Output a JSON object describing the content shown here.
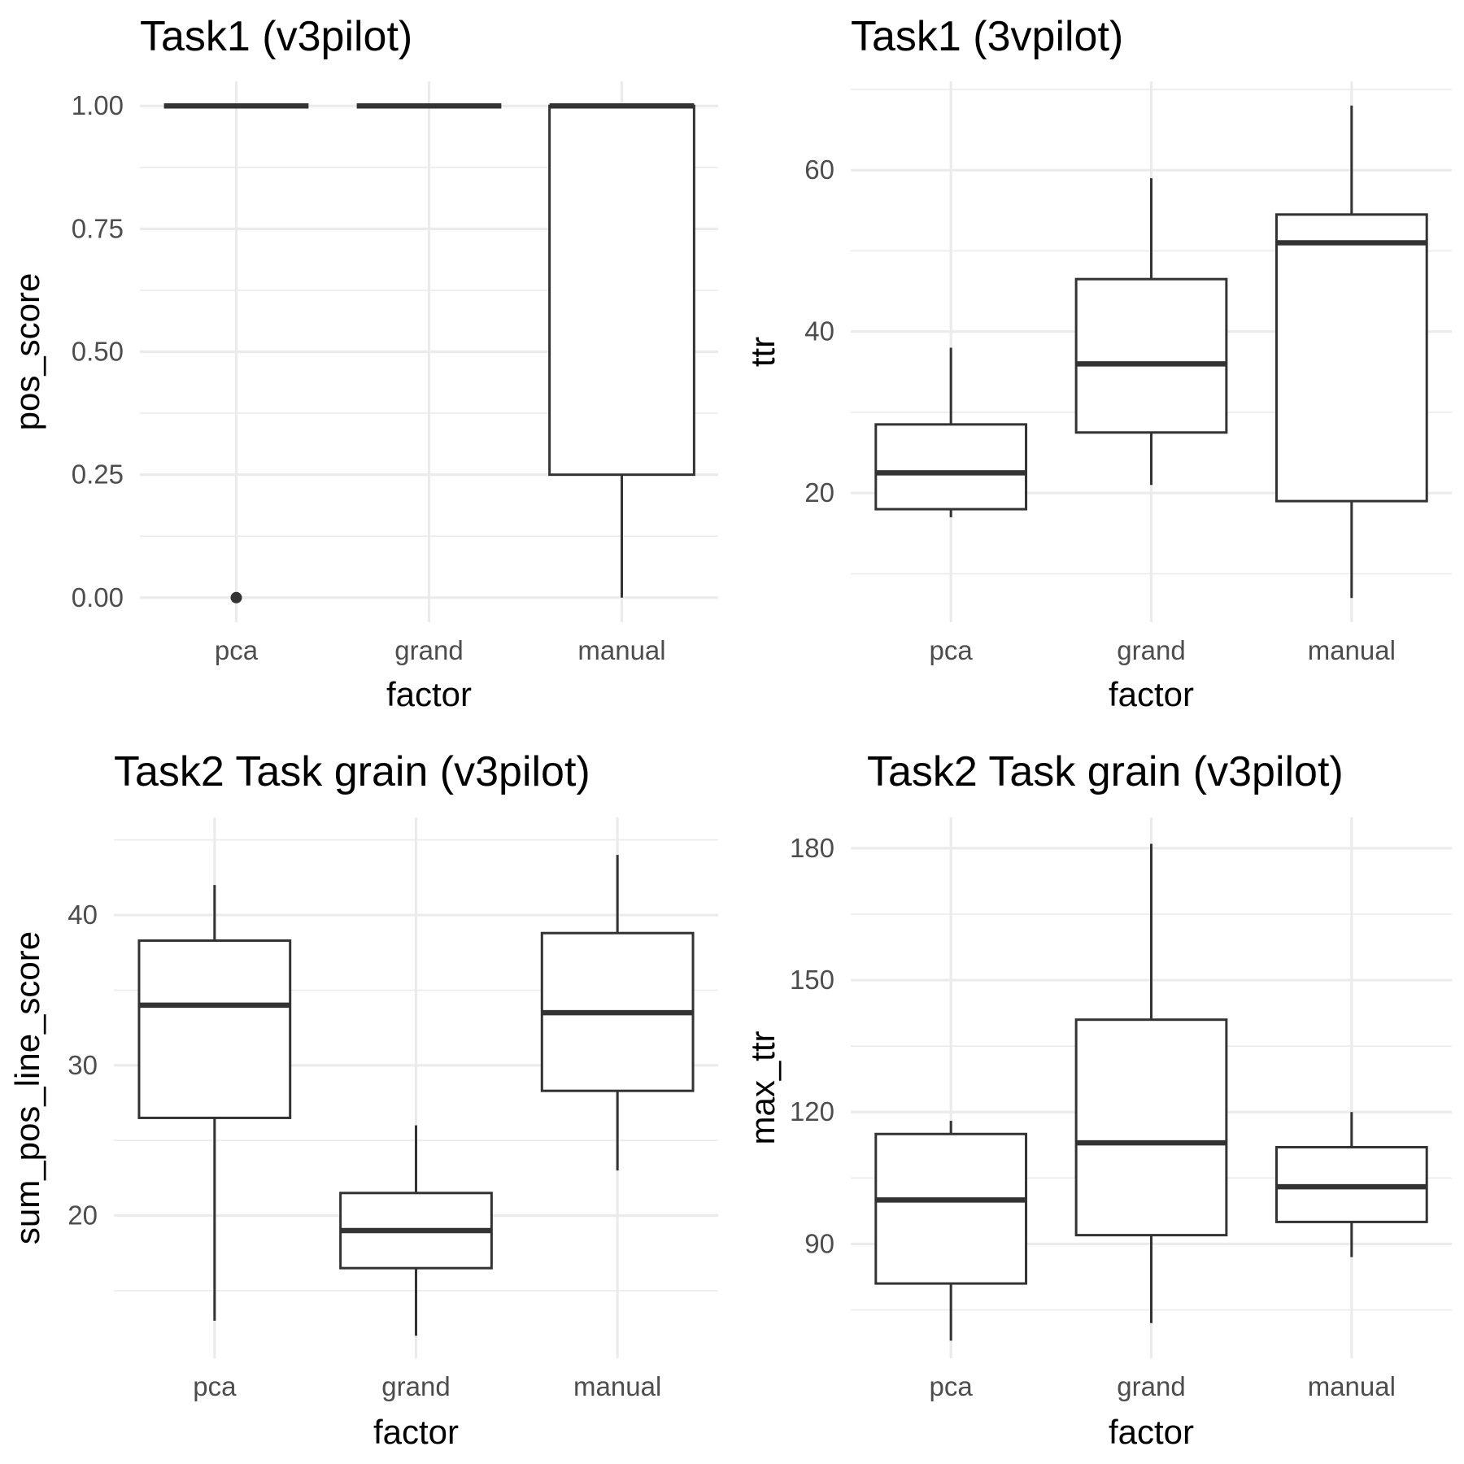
{
  "chart_data": [
    {
      "type": "box",
      "title": "Task1 (v3pilot)",
      "xlabel": "factor",
      "ylabel": "pos_score",
      "categories": [
        "pca",
        "grand",
        "manual"
      ],
      "ylim": [
        -0.05,
        1.05
      ],
      "yticks": [
        0,
        0.25,
        0.5,
        0.75,
        1
      ],
      "ytick_labels": [
        "0.00",
        "0.25",
        "0.50",
        "0.75",
        "1.00"
      ],
      "grid": true,
      "boxes": [
        {
          "category": "pca",
          "min": 1,
          "q1": 1,
          "median": 1,
          "q3": 1,
          "max": 1,
          "outliers": [
            0
          ]
        },
        {
          "category": "grand",
          "min": 1,
          "q1": 1,
          "median": 1,
          "q3": 1,
          "max": 1,
          "outliers": []
        },
        {
          "category": "manual",
          "min": 0,
          "q1": 0.25,
          "median": 1,
          "q3": 1,
          "max": 1,
          "outliers": []
        }
      ]
    },
    {
      "type": "box",
      "title": "Task1 (3vpilot)",
      "xlabel": "factor",
      "ylabel": "ttr",
      "categories": [
        "pca",
        "grand",
        "manual"
      ],
      "ylim": [
        4,
        71
      ],
      "yticks": [
        20,
        40,
        60
      ],
      "ytick_labels": [
        "20",
        "40",
        "60"
      ],
      "grid": true,
      "boxes": [
        {
          "category": "pca",
          "min": 17,
          "q1": 18,
          "median": 22.5,
          "q3": 28.5,
          "max": 38,
          "outliers": []
        },
        {
          "category": "grand",
          "min": 21,
          "q1": 27.5,
          "median": 36,
          "q3": 46.5,
          "max": 59,
          "outliers": []
        },
        {
          "category": "manual",
          "min": 7,
          "q1": 19,
          "median": 51,
          "q3": 54.5,
          "max": 68,
          "outliers": []
        }
      ]
    },
    {
      "type": "box",
      "title": "Task2 Task grain (v3pilot)",
      "xlabel": "factor",
      "ylabel": "sum_pos_line_score",
      "categories": [
        "pca",
        "grand",
        "manual"
      ],
      "ylim": [
        10.5,
        46.5
      ],
      "yticks": [
        20,
        30,
        40
      ],
      "ytick_labels": [
        "20",
        "30",
        "40"
      ],
      "grid": true,
      "boxes": [
        {
          "category": "pca",
          "min": 13,
          "q1": 26.5,
          "median": 34,
          "q3": 38.3,
          "max": 42,
          "outliers": []
        },
        {
          "category": "grand",
          "min": 12,
          "q1": 16.5,
          "median": 19,
          "q3": 21.5,
          "max": 26,
          "outliers": []
        },
        {
          "category": "manual",
          "min": 23,
          "q1": 28.3,
          "median": 33.5,
          "q3": 38.8,
          "max": 44,
          "outliers": []
        }
      ]
    },
    {
      "type": "box",
      "title": "Task2 Task grain (v3pilot)",
      "xlabel": "factor",
      "ylabel": "max_ttr",
      "categories": [
        "pca",
        "grand",
        "manual"
      ],
      "ylim": [
        64,
        187
      ],
      "yticks": [
        90,
        120,
        150,
        180
      ],
      "ytick_labels": [
        "90",
        "120",
        "150",
        "180"
      ],
      "grid": true,
      "boxes": [
        {
          "category": "pca",
          "min": 68,
          "q1": 81,
          "median": 100,
          "q3": 115,
          "max": 118,
          "outliers": []
        },
        {
          "category": "grand",
          "min": 72,
          "q1": 92,
          "median": 113,
          "q3": 141,
          "max": 181,
          "outliers": []
        },
        {
          "category": "manual",
          "min": 87,
          "q1": 95,
          "median": 103,
          "q3": 112,
          "max": 120,
          "outliers": []
        }
      ]
    }
  ]
}
